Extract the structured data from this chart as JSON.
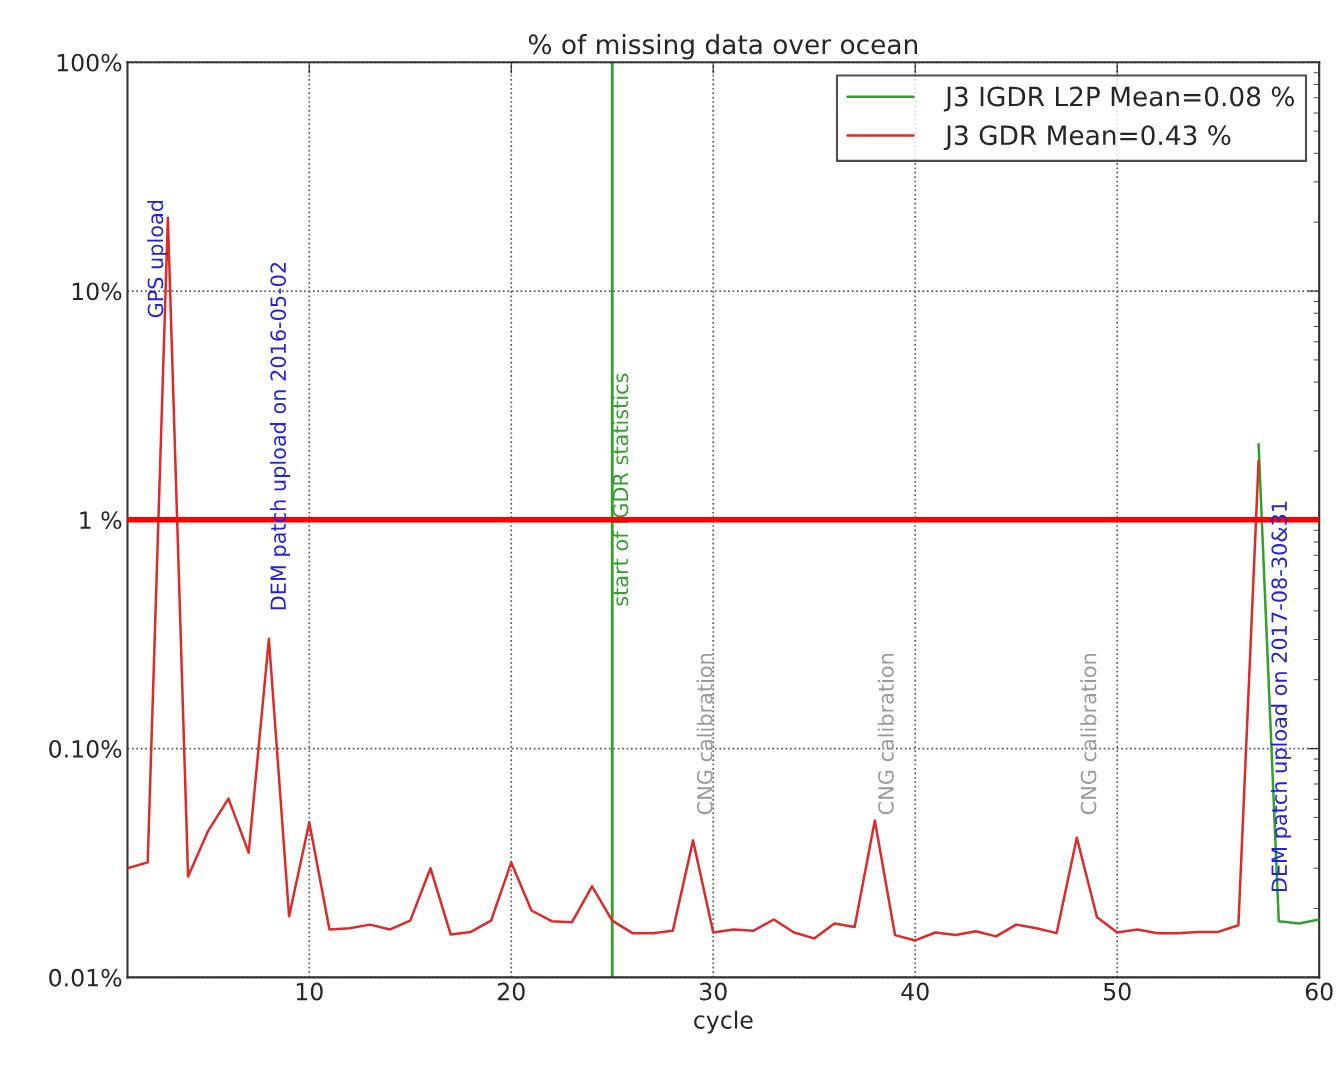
{
  "chart_data": {
    "type": "line",
    "title": "% of missing data over ocean",
    "xlabel": "cycle",
    "xlim": [
      1,
      60
    ],
    "xticks": [
      10,
      20,
      30,
      40,
      50,
      60
    ],
    "ylim": [
      0.01,
      100
    ],
    "yticks": [
      {
        "value": 0.01,
        "label": "0.01%"
      },
      {
        "value": 0.1,
        "label": "0.10%"
      },
      {
        "value": 1,
        "label": "1 %"
      },
      {
        "value": 10,
        "label": "10%"
      },
      {
        "value": 100,
        "label": "100%"
      }
    ],
    "log": "y",
    "grid": true,
    "legend": "top right",
    "series": [
      {
        "name": "J3 IGDR L2P Mean=0.08 %",
        "color": "#33a02c",
        "x": [
          57,
          58,
          59,
          60
        ],
        "values": [
          2.14,
          0.0176,
          0.0172,
          0.0179
        ]
      },
      {
        "name": "J3 GDR Mean=0.43 %",
        "color": "#dd2a2a",
        "x": [
          1,
          2,
          3,
          4,
          5,
          6,
          7,
          8,
          9,
          10,
          11,
          12,
          13,
          14,
          15,
          16,
          17,
          18,
          19,
          20,
          21,
          22,
          23,
          24,
          25,
          26,
          27,
          28,
          29,
          30,
          31,
          32,
          33,
          34,
          35,
          36,
          37,
          38,
          39,
          40,
          41,
          42,
          43,
          44,
          45,
          46,
          47,
          48,
          49,
          50,
          51,
          52,
          53,
          54,
          55,
          56,
          57
        ],
        "values": [
          0.03,
          0.0318,
          20.9,
          0.0276,
          0.0438,
          0.0604,
          0.0351,
          0.302,
          0.0185,
          0.0475,
          0.0162,
          0.0164,
          0.017,
          0.0162,
          0.0177,
          0.03,
          0.0154,
          0.0158,
          0.0177,
          0.0318,
          0.0196,
          0.0176,
          0.0174,
          0.025,
          0.0177,
          0.0156,
          0.0156,
          0.016,
          0.0397,
          0.0157,
          0.0162,
          0.016,
          0.0179,
          0.0157,
          0.0148,
          0.0172,
          0.0166,
          0.0485,
          0.0153,
          0.0145,
          0.0157,
          0.0153,
          0.0159,
          0.0151,
          0.017,
          0.0164,
          0.0156,
          0.0408,
          0.0183,
          0.0157,
          0.0162,
          0.0156,
          0.0156,
          0.0158,
          0.0158,
          0.0169,
          1.81
        ]
      }
    ],
    "ref_lines": [
      {
        "axis": "x",
        "value": 25,
        "label": "start of IGDR statistics",
        "color": "#33a02c"
      },
      {
        "axis": "y",
        "value": 1,
        "color": "#ff0000"
      }
    ],
    "annotations": [
      "GPS upload",
      "DEM patch upload on 2016-05-02",
      "CNG calibration",
      "CNG calibration",
      "CNG calibration",
      "DEM patch upload on 2017-08-30&31"
    ]
  }
}
